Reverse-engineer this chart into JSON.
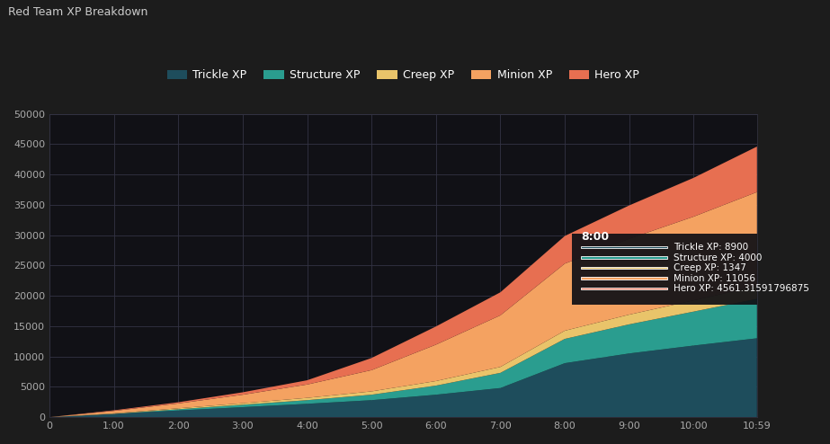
{
  "title": "Red Team XP Breakdown",
  "bg_color": "#1c1c1c",
  "plot_bg_color": "#111116",
  "legend_labels": [
    "Trickle XP",
    "Structure XP",
    "Creep XP",
    "Minion XP",
    "Hero XP"
  ],
  "legend_colors": [
    "#1e4d5c",
    "#2a9d8f",
    "#e9c46a",
    "#f4a261",
    "#e76f51"
  ],
  "ylim": [
    0,
    50000
  ],
  "yticks": [
    0,
    5000,
    10000,
    15000,
    20000,
    25000,
    30000,
    35000,
    40000,
    45000,
    50000
  ],
  "xtick_labels": [
    "0",
    "1:00",
    "2:00",
    "3:00",
    "4:00",
    "5:00",
    "6:00",
    "7:00",
    "8:00",
    "9:00",
    "10:00",
    "10:59"
  ],
  "xtick_positions": [
    0,
    60,
    120,
    180,
    240,
    300,
    360,
    420,
    480,
    540,
    600,
    659
  ],
  "tick_color": "#aaaaaa",
  "grid_color": "#333344",
  "max_time": 659,
  "title_color": "#cccccc",
  "tooltip_values": {
    "Trickle XP": 8900,
    "Structure XP": 4000,
    "Creep XP": 1347,
    "Minion XP": 11056,
    "Hero XP": 4561.31591796875
  }
}
